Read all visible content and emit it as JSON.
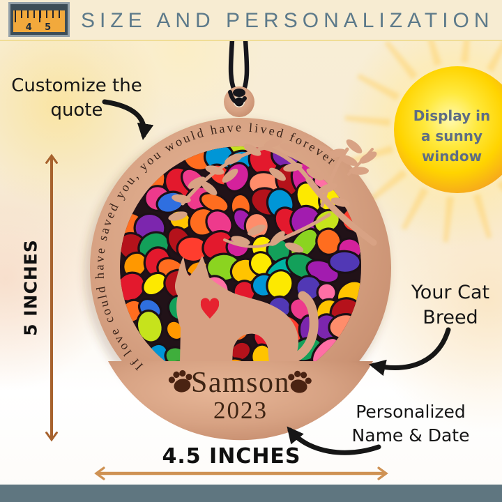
{
  "header": {
    "title": "SIZE AND PERSONALIZATION",
    "ruler_icon": {
      "numbers": [
        "4",
        "5"
      ]
    }
  },
  "callouts": {
    "customize_quote": {
      "lines": [
        "Customize the",
        "quote"
      ]
    },
    "sunny_window": {
      "lines": [
        "Display in",
        "a sunny",
        "window"
      ]
    },
    "cat_breed": {
      "lines": [
        "Your Cat",
        "Breed"
      ]
    },
    "personalized": {
      "lines": [
        "Personalized",
        "Name & Date"
      ]
    }
  },
  "dimensions": {
    "height": "5 INCHES",
    "width": "4.5 INCHES"
  },
  "ornament": {
    "quote": "If love could have saved you, you would have lived forever",
    "name": "Samson",
    "year": "2023"
  },
  "colors": {
    "header_bg": "#f7ecd2",
    "header_text": "#5d7a8a",
    "footer_bar": "#5f7680",
    "ruler_face": "#f2a93c",
    "ruler_panel": "#3d4d57",
    "wood": "#d8a284",
    "engraving": "#3f2514",
    "annotation": "#161616",
    "sun_text": "#5e6d84",
    "sun_core": "#ffd400",
    "dimension_arrow_vertical": "#a7622d",
    "dimension_arrow_horizontal": "#cf9254",
    "mosaic_background": "#211218",
    "mosaic_palette": [
      "#e3192d",
      "#b5121b",
      "#ff3d2e",
      "#ff6d1f",
      "#ff9800",
      "#ffc400",
      "#fde900",
      "#c6e31c",
      "#8bd420",
      "#3fae3c",
      "#13a05a",
      "#00b3a4",
      "#0096d6",
      "#2f6fe0",
      "#5138b5",
      "#7c26ae",
      "#a21caf",
      "#d4219c",
      "#ee3a8c",
      "#ff6fa5",
      "#ff8d6b"
    ]
  }
}
